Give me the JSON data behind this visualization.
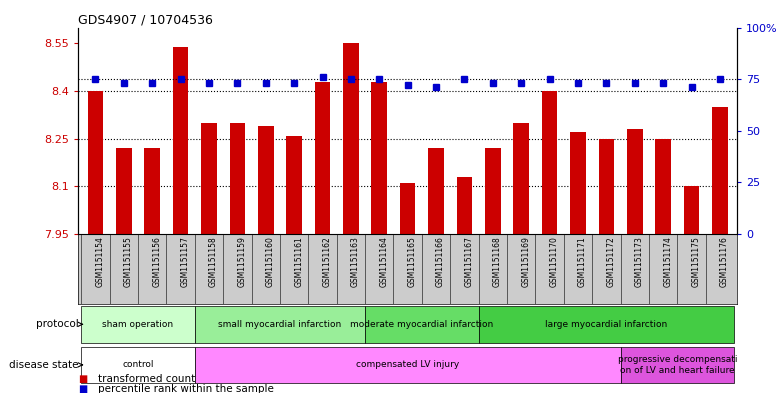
{
  "title": "GDS4907 / 10704536",
  "samples": [
    "GSM1151154",
    "GSM1151155",
    "GSM1151156",
    "GSM1151157",
    "GSM1151158",
    "GSM1151159",
    "GSM1151160",
    "GSM1151161",
    "GSM1151162",
    "GSM1151163",
    "GSM1151164",
    "GSM1151165",
    "GSM1151166",
    "GSM1151167",
    "GSM1151168",
    "GSM1151169",
    "GSM1151170",
    "GSM1151171",
    "GSM1151172",
    "GSM1151173",
    "GSM1151174",
    "GSM1151175",
    "GSM1151176"
  ],
  "bar_values": [
    8.4,
    8.22,
    8.22,
    8.54,
    8.3,
    8.3,
    8.29,
    8.26,
    8.43,
    8.55,
    8.43,
    8.11,
    8.22,
    8.13,
    8.22,
    8.3,
    8.4,
    8.27,
    8.25,
    8.28,
    8.25,
    8.1,
    8.35
  ],
  "percentile_values": [
    75,
    73,
    73,
    75,
    73,
    73,
    73,
    73,
    76,
    75,
    75,
    72,
    71,
    75,
    73,
    73,
    75,
    73,
    73,
    73,
    73,
    71,
    75
  ],
  "bar_color": "#cc0000",
  "dot_color": "#0000cc",
  "ylim_left": [
    7.95,
    8.6
  ],
  "ylim_right": [
    0,
    100
  ],
  "yticks_left": [
    7.95,
    8.1,
    8.25,
    8.4,
    8.55
  ],
  "ytick_labels_left": [
    "7.95",
    "8.1",
    "8.25",
    "8.4",
    "8.55"
  ],
  "yticks_right": [
    0,
    25,
    50,
    75,
    100
  ],
  "ytick_labels_right": [
    "0",
    "25",
    "50",
    "75",
    "100%"
  ],
  "hlines": [
    8.1,
    8.25,
    8.4
  ],
  "protocol_groups": [
    {
      "label": "sham operation",
      "start": 0,
      "end": 3,
      "color": "#ccffcc"
    },
    {
      "label": "small myocardial infarction",
      "start": 4,
      "end": 9,
      "color": "#99ee99"
    },
    {
      "label": "moderate myocardial infarction",
      "start": 10,
      "end": 13,
      "color": "#66dd66"
    },
    {
      "label": "large myocardial infarction",
      "start": 14,
      "end": 22,
      "color": "#44cc44"
    }
  ],
  "disease_groups": [
    {
      "label": "control",
      "start": 0,
      "end": 3,
      "color": "#ffffff"
    },
    {
      "label": "compensated LV injury",
      "start": 4,
      "end": 18,
      "color": "#ff88ff"
    },
    {
      "label": "progressive decompensati\non of LV and heart failure",
      "start": 19,
      "end": 22,
      "color": "#dd55dd"
    }
  ],
  "legend_bar_label": "transformed count",
  "legend_dot_label": "percentile rank within the sample",
  "bar_width": 0.55,
  "bg_color": "#ffffff",
  "xticklabel_bg": "#cccccc"
}
